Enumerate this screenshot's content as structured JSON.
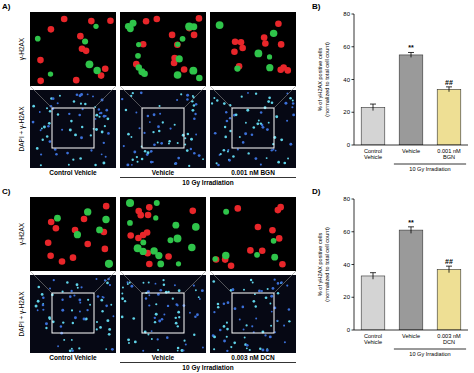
{
  "figure": {
    "panels": [
      {
        "label": "A)",
        "row_labels": [
          "γ-H2AX",
          "DAPI + γ-H2AX"
        ],
        "columns": [
          "Control Vehicle",
          "Vehicle",
          "0.001 nM BGN"
        ],
        "group_label": "10 Gy Irradiation"
      },
      {
        "label": "C)",
        "row_labels": [
          "γ-H2AX",
          "DAPI + γ-H2AX"
        ],
        "columns": [
          "Control Vehicle",
          "Vehicle",
          "0.003 nM DCN"
        ],
        "group_label": "10 Gy Irradiation"
      }
    ]
  },
  "chart_data": [
    {
      "type": "bar",
      "panel_label": "B)",
      "categories": [
        "Control Vehicle",
        "Vehicle",
        "0.001 nM BGN"
      ],
      "values": [
        23,
        55,
        34
      ],
      "errors": [
        2,
        1.5,
        1.5
      ],
      "colors": [
        "#d4d4d4",
        "#9a9a9a",
        "#eedf94"
      ],
      "significance": [
        null,
        "**",
        "##"
      ],
      "group_label": "10 Gy Irradiation",
      "y_label": [
        "% of γH2AX positive cells",
        "(normalized to total cell count)"
      ],
      "ylim": [
        0,
        80
      ],
      "yticks": [
        0,
        20,
        40,
        60,
        80
      ]
    },
    {
      "type": "bar",
      "panel_label": "D)",
      "categories": [
        "Control Vehicle",
        "Vehicle",
        "0.003 nM DCN"
      ],
      "values": [
        33,
        61,
        37
      ],
      "errors": [
        2,
        2,
        2
      ],
      "colors": [
        "#d4d4d4",
        "#9a9a9a",
        "#eedf94"
      ],
      "significance": [
        null,
        "**",
        "##"
      ],
      "group_label": "10 Gy Irradiation",
      "y_label": [
        "% of γH2AX positive cells",
        "(normalized to total cell count)"
      ],
      "ylim": [
        0,
        80
      ],
      "yticks": [
        0,
        20,
        40,
        60,
        80
      ]
    }
  ]
}
